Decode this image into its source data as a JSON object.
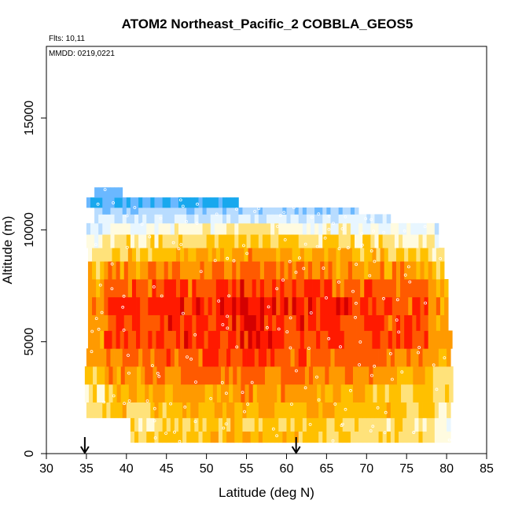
{
  "chart_data": {
    "type": "heatmap",
    "title": "ATOM2 Northeast_Pacific_2 COBBLA_GEOS5",
    "annotations": {
      "flights": "Flts: 10,11",
      "dates": "MMDD: 0219,0221"
    },
    "xlabel": "Latitude (deg N)",
    "ylabel": "Altitude (m)",
    "xlim": [
      30,
      85
    ],
    "ylim": [
      0,
      18200
    ],
    "xticks": [
      30,
      35,
      40,
      45,
      50,
      55,
      60,
      65,
      70,
      75,
      80,
      85
    ],
    "yticks": [
      0,
      5000,
      10000,
      15000
    ],
    "arrow_markers_lat": [
      34.8,
      61.2
    ],
    "colorscale": [
      "#fffbe0",
      "#ffe27a",
      "#ffc000",
      "#ff9a00",
      "#ff5a00",
      "#ff1a00",
      "#d40000",
      "#a80000"
    ],
    "low_colors": [
      "#e8f6ff",
      "#b8dcff",
      "#6ab8ff",
      "#18a8ee",
      "#2055e8",
      "#2020c0"
    ],
    "bands": [
      {
        "alt_min": 500,
        "alt_max": 1000,
        "lat_min": 40.5,
        "lat_max": 80.5,
        "value": 0.35
      },
      {
        "alt_min": 1000,
        "alt_max": 1600,
        "lat_min": 40.5,
        "lat_max": 80.5,
        "value": 0.3
      },
      {
        "alt_min": 1600,
        "alt_max": 2300,
        "lat_min": 35.0,
        "lat_max": 80.5,
        "value": 0.4
      },
      {
        "alt_min": 2300,
        "alt_max": 3100,
        "lat_min": 34.8,
        "lat_max": 80.5,
        "value": 0.45
      },
      {
        "alt_min": 3100,
        "alt_max": 3900,
        "lat_min": 34.8,
        "lat_max": 80.5,
        "value": 0.55
      },
      {
        "alt_min": 3900,
        "alt_max": 4700,
        "lat_min": 35.0,
        "lat_max": 80.5,
        "value": 0.62
      },
      {
        "alt_min": 4700,
        "alt_max": 5500,
        "lat_min": 35.2,
        "lat_max": 80.3,
        "value": 0.7
      },
      {
        "alt_min": 5500,
        "alt_max": 6200,
        "lat_min": 35.2,
        "lat_max": 80.2,
        "value": 0.72
      },
      {
        "alt_min": 6200,
        "alt_max": 7000,
        "lat_min": 35.2,
        "lat_max": 80.2,
        "value": 0.74
      },
      {
        "alt_min": 7000,
        "alt_max": 7800,
        "lat_min": 35.2,
        "lat_max": 80.0,
        "value": 0.66
      },
      {
        "alt_min": 7800,
        "alt_max": 8600,
        "lat_min": 35.2,
        "lat_max": 79.5,
        "value": 0.55
      },
      {
        "alt_min": 8600,
        "alt_max": 9200,
        "lat_min": 35.2,
        "lat_max": 79.5,
        "value": 0.42
      },
      {
        "alt_min": 9200,
        "alt_max": 9800,
        "lat_min": 35.0,
        "lat_max": 79.0,
        "value": 0.28
      },
      {
        "alt_min": 9800,
        "alt_max": 10300,
        "lat_min": 35.0,
        "lat_max": 79.0,
        "value": 0.12
      },
      {
        "alt_min": 10300,
        "alt_max": 10700,
        "lat_min": 36.0,
        "lat_max": 73.0,
        "value": -0.15
      },
      {
        "alt_min": 10700,
        "alt_max": 11000,
        "lat_min": 36.0,
        "lat_max": 69.0,
        "value": -0.3
      },
      {
        "alt_min": 11000,
        "alt_max": 11450,
        "lat_min": 35.0,
        "lat_max": 54.0,
        "value": -0.55
      },
      {
        "alt_min": 11450,
        "alt_max": 11900,
        "lat_min": 36.0,
        "lat_max": 39.5,
        "value": -0.45
      }
    ]
  }
}
